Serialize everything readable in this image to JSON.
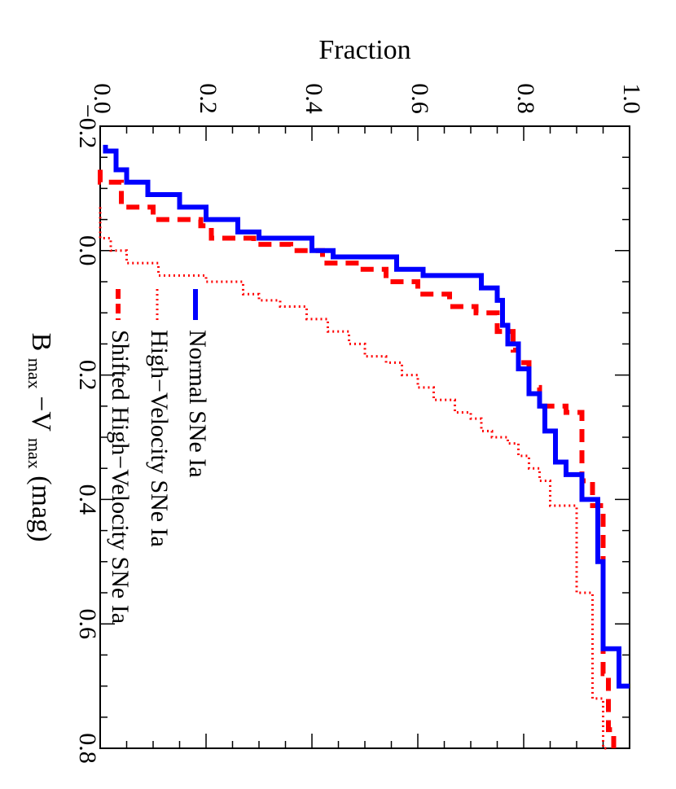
{
  "chart_data": {
    "type": "line",
    "step": true,
    "orientation": "rotated-90-clockwise",
    "xlabel": "B_max−V_max (mag)",
    "xlabel_parts": {
      "main1": "B",
      "sub1": "max",
      "dash": "−V",
      "sub2": "max",
      "rest": " (mag)"
    },
    "ylabel": "Fraction",
    "xlim": [
      -0.2,
      0.8
    ],
    "ylim": [
      0.0,
      1.0
    ],
    "x_ticks": [
      -0.2,
      0.0,
      0.2,
      0.4,
      0.6,
      0.8
    ],
    "x_tick_labels": [
      "−0.2",
      "0.0",
      "0.2",
      "0.4",
      "0.6",
      "0.8"
    ],
    "y_ticks": [
      0.0,
      0.2,
      0.4,
      0.6,
      0.8,
      1.0
    ],
    "y_tick_labels": [
      "0.0",
      "0.2",
      "0.4",
      "0.6",
      "0.8",
      "1.0"
    ],
    "legend_position": "bottom-left",
    "series": [
      {
        "name": "Normal SNe Ia",
        "color": "#0000ff",
        "style": "solid",
        "x": [
          -0.17,
          -0.16,
          -0.13,
          -0.11,
          -0.09,
          -0.07,
          -0.05,
          -0.03,
          -0.02,
          0.0,
          0.01,
          0.03,
          0.04,
          0.06,
          0.08,
          0.12,
          0.15,
          0.19,
          0.23,
          0.25,
          0.29,
          0.31,
          0.34,
          0.36,
          0.4,
          0.5,
          0.64,
          0.7
        ],
        "y": [
          0.01,
          0.03,
          0.05,
          0.09,
          0.15,
          0.2,
          0.26,
          0.3,
          0.4,
          0.44,
          0.56,
          0.61,
          0.72,
          0.75,
          0.76,
          0.77,
          0.79,
          0.81,
          0.83,
          0.84,
          0.86,
          0.86,
          0.88,
          0.91,
          0.94,
          0.95,
          0.98,
          1.0
        ]
      },
      {
        "name": "High−Velocity SNe Ia",
        "color": "#ff0000",
        "style": "dotted",
        "x": [
          -0.07,
          -0.04,
          -0.02,
          0.0,
          0.02,
          0.04,
          0.05,
          0.07,
          0.08,
          0.09,
          0.11,
          0.13,
          0.15,
          0.17,
          0.18,
          0.2,
          0.22,
          0.24,
          0.26,
          0.27,
          0.29,
          0.3,
          0.31,
          0.33,
          0.35,
          0.37,
          0.41,
          0.55,
          0.72,
          0.8
        ],
        "y": [
          0.0,
          0.0,
          0.02,
          0.05,
          0.11,
          0.2,
          0.27,
          0.3,
          0.34,
          0.39,
          0.43,
          0.47,
          0.5,
          0.54,
          0.57,
          0.6,
          0.63,
          0.67,
          0.7,
          0.72,
          0.74,
          0.77,
          0.79,
          0.81,
          0.83,
          0.85,
          0.9,
          0.93,
          0.95,
          0.96
        ]
      },
      {
        "name": "Shifted High−Velocity SNe Ia",
        "color": "#ff0000",
        "style": "dashed",
        "x": [
          -0.13,
          -0.11,
          -0.07,
          -0.05,
          -0.04,
          -0.02,
          -0.01,
          0.0,
          0.02,
          0.03,
          0.05,
          0.07,
          0.09,
          0.1,
          0.13,
          0.16,
          0.18,
          0.22,
          0.25,
          0.26,
          0.37,
          0.41,
          0.55,
          0.68,
          0.77,
          0.8
        ],
        "y": [
          0.0,
          0.04,
          0.1,
          0.19,
          0.21,
          0.29,
          0.36,
          0.42,
          0.49,
          0.54,
          0.6,
          0.66,
          0.71,
          0.75,
          0.78,
          0.79,
          0.81,
          0.83,
          0.88,
          0.91,
          0.93,
          0.95,
          0.95,
          0.96,
          0.97,
          0.97
        ]
      }
    ]
  }
}
